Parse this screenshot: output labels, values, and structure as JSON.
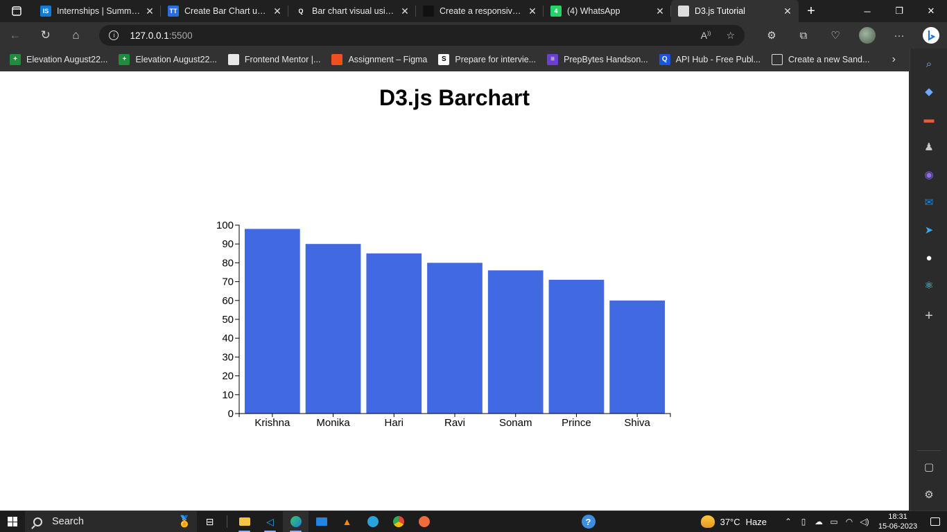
{
  "browser": {
    "tabs": [
      {
        "title": "Internships | Summer Internships",
        "favicon_text": "IS",
        "favicon_color": "#0b7dda",
        "active": false
      },
      {
        "title": "Create Bar Chart using D3",
        "favicon_text": "TT",
        "favicon_color": "#2a6fdb",
        "active": false
      },
      {
        "title": "Bar chart visual using D3",
        "favicon_text": "Q",
        "favicon_color": "#202020",
        "active": false
      },
      {
        "title": "Create a responsive Bar Chart",
        "favicon_text": "",
        "favicon_color": "#111111",
        "active": false
      },
      {
        "title": "(4) WhatsApp",
        "favicon_text": "4",
        "favicon_color": "#25d366",
        "active": false
      },
      {
        "title": "D3.js Tutorial",
        "favicon_text": "",
        "favicon_color": "#dddddd",
        "active": true
      }
    ],
    "address": {
      "host": "127.0.0.1",
      "port": ":5500"
    },
    "bookmarks": [
      {
        "label": "Elevation August22...",
        "icon_color": "#1e8e3e",
        "icon_text": "+"
      },
      {
        "label": "Elevation August22...",
        "icon_color": "#1e8e3e",
        "icon_text": "+"
      },
      {
        "label": "Frontend Mentor |...",
        "icon_color": "#e8e8e8",
        "icon_text": ""
      },
      {
        "label": "Assignment – Figma",
        "icon_color": "#f24e1e",
        "icon_text": ""
      },
      {
        "label": "Prepare for intervie...",
        "icon_color": "#ffffff",
        "icon_text": "S"
      },
      {
        "label": "PrepBytes Handson...",
        "icon_color": "#6b3fd4",
        "icon_text": "≡"
      },
      {
        "label": "API Hub - Free Publ...",
        "icon_color": "#1a56db",
        "icon_text": "Q"
      },
      {
        "label": "Create a new Sand...",
        "icon_color": "#323232",
        "icon_text": ""
      }
    ]
  },
  "page": {
    "heading": "D3.js Barchart"
  },
  "chart_data": {
    "type": "bar",
    "title": "D3.js Barchart",
    "xlabel": "",
    "ylabel": "",
    "categories": [
      "Krishna",
      "Monika",
      "Hari",
      "Ravi",
      "Sonam",
      "Prince",
      "Shiva"
    ],
    "values": [
      98,
      90,
      85,
      80,
      76,
      71,
      60
    ],
    "ylim": [
      0,
      100
    ],
    "yticks": [
      0,
      10,
      20,
      30,
      40,
      50,
      60,
      70,
      80,
      90,
      100
    ],
    "bar_color": "#4169e1",
    "grid": false
  },
  "taskbar": {
    "search_label": "Search",
    "weather": {
      "temp": "37°C",
      "condition": "Haze"
    },
    "clock": {
      "time": "18:31",
      "date": "15-06-2023"
    }
  }
}
